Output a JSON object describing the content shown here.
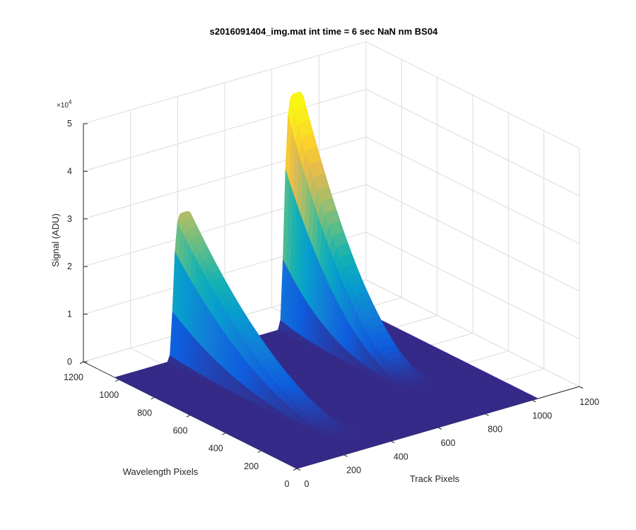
{
  "chart_data": {
    "type": "surface",
    "title": "s2016091404_img.mat int time = 6 sec  NaN nm BS04",
    "xlabel": "Track Pixels",
    "ylabel": "Wavelength Pixels",
    "zlabel": "Signal (ADU)",
    "z_exponent_label": "×10",
    "z_exponent_power": "4",
    "xlim": [
      0,
      1200
    ],
    "ylim": [
      0,
      1200
    ],
    "zlim": [
      0,
      50000
    ],
    "x_ticks": [
      "0",
      "200",
      "400",
      "600",
      "800",
      "1000",
      "1200"
    ],
    "y_ticks": [
      "0",
      "200",
      "400",
      "600",
      "800",
      "1000",
      "1200"
    ],
    "z_ticks": [
      "0",
      "1",
      "2",
      "3",
      "4",
      "5"
    ],
    "grid": true,
    "colormap": "parula",
    "data_extent": {
      "x": [
        0,
        1024
      ],
      "y": [
        0,
        1024
      ]
    },
    "peaks": [
      {
        "x_center": 300,
        "x_halfwidth": 60,
        "y_start": 60,
        "y_end": 1024,
        "peak_value": 30500
      },
      {
        "x_center": 775,
        "x_halfwidth": 65,
        "y_start": 290,
        "y_end": 1024,
        "peak_value": 48700
      }
    ]
  }
}
